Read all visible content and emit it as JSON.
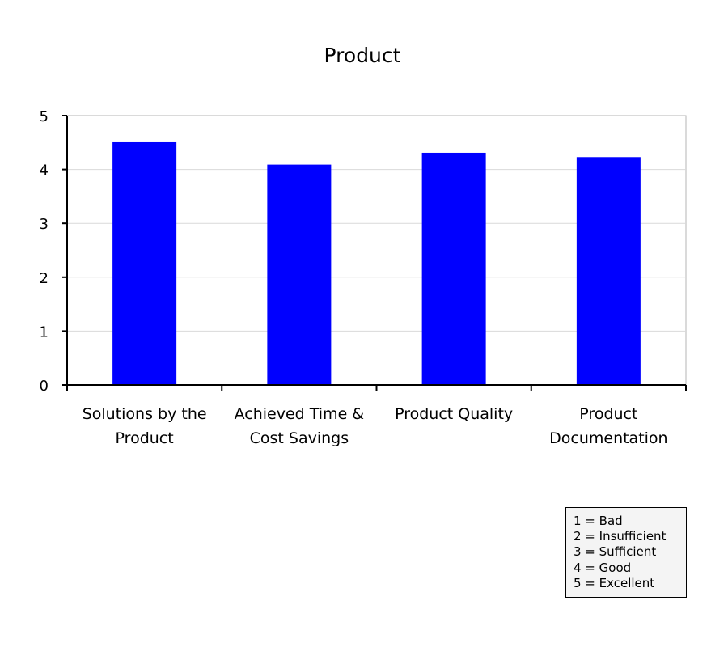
{
  "chart_data": {
    "type": "bar",
    "title": "Product",
    "categories": [
      [
        "Solutions by the",
        "Product"
      ],
      [
        "Achieved Time &",
        "Cost Savings"
      ],
      [
        "Product Quality"
      ],
      [
        "Product",
        "Documentation"
      ]
    ],
    "values": [
      4.52,
      4.09,
      4.31,
      4.23
    ],
    "ylim": [
      0,
      5
    ],
    "yticks": [
      "0",
      "1",
      "2",
      "3",
      "4",
      "5"
    ],
    "grid": true,
    "bar_color": "#0000ff",
    "legend_placement": "bottom-right"
  },
  "legend": {
    "items": [
      "1 = Bad",
      "2 = Insufficient",
      "3 = Sufficient",
      "4 = Good",
      "5 = Excellent"
    ]
  }
}
